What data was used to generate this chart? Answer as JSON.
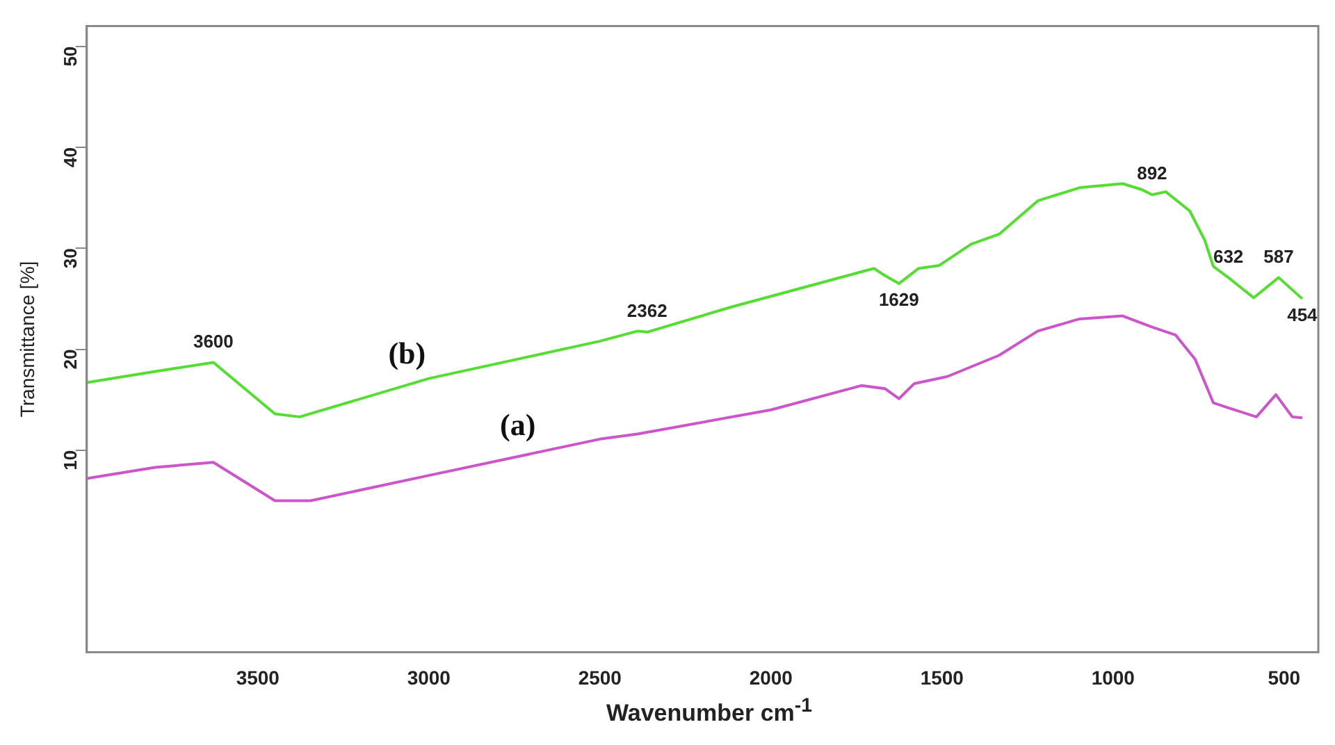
{
  "chart_data": {
    "type": "line",
    "xlabel": "Wavenumber cm$^{-1}$",
    "ylabel": "Transmittance [%]",
    "xlim": [
      4000,
      400
    ],
    "xticks": [
      3500,
      3000,
      2500,
      2000,
      1500,
      1000,
      500
    ],
    "ylim": [
      -10,
      52
    ],
    "yticks": [
      10,
      20,
      30,
      40,
      50
    ],
    "grid": false,
    "legend": false,
    "marker": "none",
    "line_style": "solid",
    "series": [
      {
        "name": "(a)",
        "color": "#cc55cc",
        "x": [
          4000,
          3800,
          3630,
          3450,
          3346,
          3000,
          2500,
          2390,
          2000,
          1736,
          1667,
          1626,
          1581,
          1484,
          1333,
          1220,
          1098,
          972,
          886,
          817,
          760,
          707,
          663,
          581,
          524,
          476,
          447
        ],
        "values": [
          7.2,
          8.3,
          8.8,
          5.0,
          5.0,
          7.5,
          11.1,
          11.6,
          14.0,
          16.4,
          16.1,
          15.1,
          16.6,
          17.3,
          19.4,
          21.8,
          23.0,
          23.3,
          22.2,
          21.4,
          19.0,
          14.7,
          14.2,
          13.3,
          15.5,
          13.3,
          13.2
        ]
      },
      {
        "name": "(b)",
        "color": "#55dd33",
        "x": [
          4000,
          3800,
          3630,
          3450,
          3378,
          3000,
          2500,
          2390,
          2362,
          2114,
          1699,
          1667,
          1626,
          1569,
          1508,
          1415,
          1333,
          1220,
          1098,
          972,
          915,
          886,
          846,
          776,
          732,
          707,
          663,
          589,
          516,
          447
        ],
        "values": [
          16.7,
          17.8,
          18.7,
          13.6,
          13.3,
          17.1,
          20.8,
          21.8,
          21.7,
          24.2,
          28.0,
          27.3,
          26.5,
          28.0,
          28.3,
          30.4,
          31.4,
          34.7,
          36.0,
          36.4,
          35.8,
          35.3,
          35.6,
          33.7,
          30.8,
          28.2,
          27.1,
          25.1,
          27.1,
          25.0
        ]
      }
    ],
    "annotations": [
      {
        "text": "3600",
        "x": 3630,
        "y": 18.7
      },
      {
        "text": "2362",
        "x": 2362,
        "y": 21.7
      },
      {
        "text": "1629",
        "x": 1626,
        "y": 26.5
      },
      {
        "text": "892",
        "x": 886,
        "y": 35.3
      },
      {
        "text": "632",
        "x": 663,
        "y": 27.1
      },
      {
        "text": "587",
        "x": 516,
        "y": 27.1
      },
      {
        "text": "454",
        "x": 447,
        "y": 25.0
      }
    ]
  }
}
